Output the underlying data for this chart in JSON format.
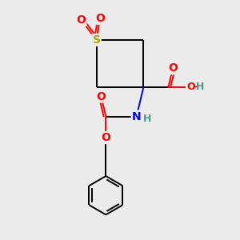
{
  "bg_color": "#ebebeb",
  "atom_colors": {
    "C": "#000000",
    "H": "#4a9a8a",
    "N": "#0000ee",
    "O": "#ff0000",
    "S": "#aaaa00"
  },
  "figsize": [
    3.0,
    3.0
  ],
  "dpi": 100
}
